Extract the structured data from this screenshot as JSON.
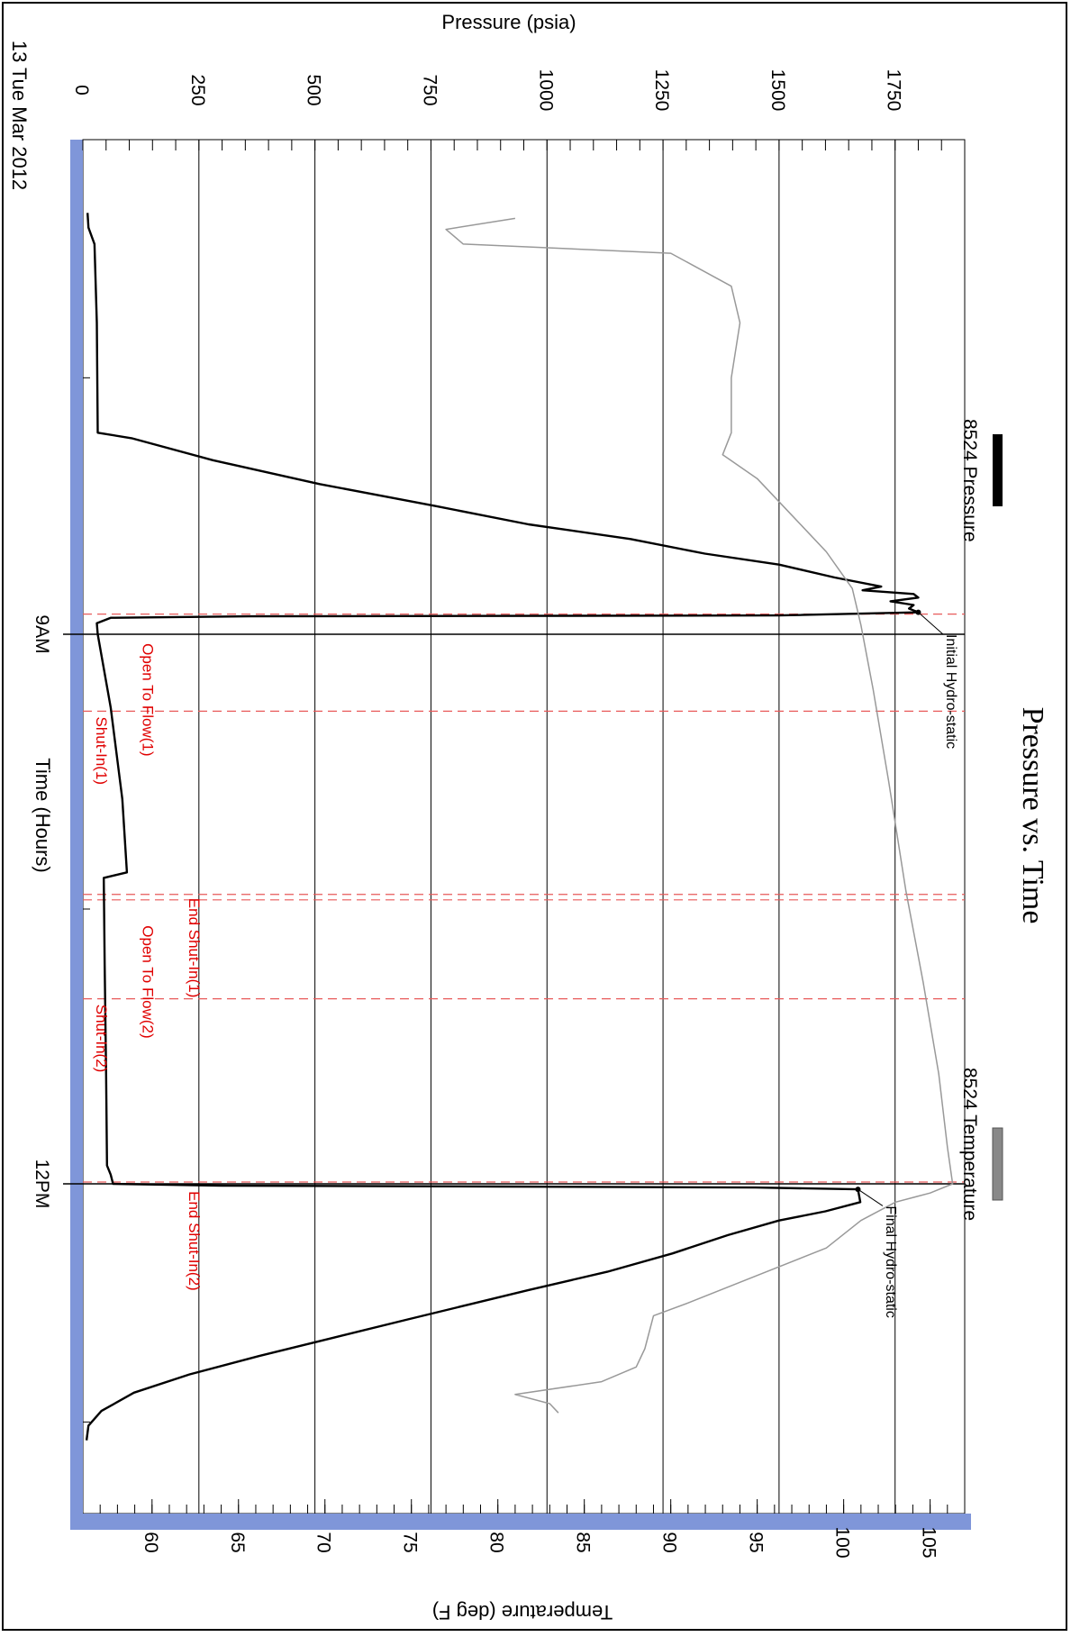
{
  "chart_data": {
    "type": "line",
    "title": "Pressure vs. Time",
    "date_label": "13 Tue Mar 2012",
    "xlabel": "Time (Hours)",
    "ylabel": "Pressure (psia)",
    "ylabel_right": "Temperature (deg F)",
    "x_tick_labels": [
      {
        "hour": 9,
        "label": "9AM"
      },
      {
        "hour": 12,
        "label": "12PM"
      }
    ],
    "xlim_hours": [
      6.3,
      13.8
    ],
    "ylim": [
      0,
      1900
    ],
    "y_ticks": [
      0,
      250,
      500,
      750,
      1000,
      1250,
      1500,
      1750
    ],
    "y2lim": [
      56,
      107
    ],
    "y2_ticks": [
      60,
      65,
      70,
      75,
      80,
      85,
      90,
      95,
      100,
      105
    ],
    "grid": true,
    "legend_placement": "top",
    "series": [
      {
        "name": "8524 Pressure",
        "axis": "left",
        "color": "#000000",
        "points": [
          [
            6.7,
            10
          ],
          [
            6.78,
            12
          ],
          [
            6.87,
            25
          ],
          [
            7.3,
            30
          ],
          [
            7.9,
            32
          ],
          [
            7.93,
            105
          ],
          [
            8.05,
            280
          ],
          [
            8.18,
            510
          ],
          [
            8.3,
            760
          ],
          [
            8.4,
            960
          ],
          [
            8.48,
            1180
          ],
          [
            8.56,
            1340
          ],
          [
            8.62,
            1500
          ],
          [
            8.69,
            1620
          ],
          [
            8.74,
            1720
          ],
          [
            8.76,
            1680
          ],
          [
            8.78,
            1790
          ],
          [
            8.8,
            1800
          ],
          [
            8.82,
            1740
          ],
          [
            8.84,
            1790
          ],
          [
            8.86,
            1780
          ],
          [
            8.88,
            1800
          ],
          [
            8.897,
            1500
          ],
          [
            8.902,
            360
          ],
          [
            8.91,
            60
          ],
          [
            8.94,
            30
          ],
          [
            9.0,
            32
          ],
          [
            9.4,
            60
          ],
          [
            9.9,
            85
          ],
          [
            10.3,
            95
          ],
          [
            10.33,
            45
          ],
          [
            10.8,
            47
          ],
          [
            11.4,
            50
          ],
          [
            11.9,
            52
          ],
          [
            11.95,
            60
          ],
          [
            12.0,
            65
          ],
          [
            12.01,
            300
          ],
          [
            12.015,
            900
          ],
          [
            12.02,
            1450
          ],
          [
            12.03,
            1670
          ],
          [
            12.1,
            1675
          ],
          [
            12.15,
            1600
          ],
          [
            12.2,
            1500
          ],
          [
            12.28,
            1390
          ],
          [
            12.38,
            1270
          ],
          [
            12.48,
            1130
          ],
          [
            12.58,
            960
          ],
          [
            12.66,
            830
          ],
          [
            12.74,
            700
          ],
          [
            12.84,
            540
          ],
          [
            12.94,
            380
          ],
          [
            13.04,
            230
          ],
          [
            13.14,
            110
          ],
          [
            13.24,
            40
          ],
          [
            13.32,
            12
          ],
          [
            13.4,
            8
          ]
        ]
      },
      {
        "name": "8524 Temperature",
        "axis": "right",
        "color": "#999999",
        "points": [
          [
            6.73,
            81
          ],
          [
            6.79,
            77
          ],
          [
            6.87,
            78
          ],
          [
            6.92,
            90
          ],
          [
            7.1,
            93.5
          ],
          [
            7.3,
            94.0
          ],
          [
            7.6,
            93.5
          ],
          [
            7.9,
            93.5
          ],
          [
            8.02,
            93.0
          ],
          [
            8.15,
            95.0
          ],
          [
            8.35,
            97.0
          ],
          [
            8.55,
            99.0
          ],
          [
            8.75,
            100.5
          ],
          [
            8.95,
            101.0
          ],
          [
            9.3,
            101.7
          ],
          [
            9.8,
            102.6
          ],
          [
            10.4,
            103.6
          ],
          [
            10.9,
            104.6
          ],
          [
            11.4,
            105.5
          ],
          [
            11.8,
            106.0
          ],
          [
            12.0,
            106.3
          ],
          [
            12.05,
            105.0
          ],
          [
            12.1,
            103.0
          ],
          [
            12.2,
            101.0
          ],
          [
            12.35,
            99.0
          ],
          [
            12.5,
            95.0
          ],
          [
            12.65,
            91.0
          ],
          [
            12.72,
            89.0
          ],
          [
            12.9,
            88.5
          ],
          [
            13.0,
            88.0
          ],
          [
            13.08,
            86.0
          ],
          [
            13.15,
            81.0
          ],
          [
            13.2,
            83.0
          ],
          [
            13.25,
            83.5
          ]
        ]
      }
    ],
    "event_markers": [
      {
        "hour": 8.89,
        "label": "",
        "style": "dashed"
      },
      {
        "hour": 9.42,
        "label": "",
        "style": "dashed"
      },
      {
        "hour": 10.42,
        "label": "",
        "style": "dashed"
      },
      {
        "hour": 10.45,
        "label": "",
        "style": "dashed"
      },
      {
        "hour": 10.99,
        "label": "",
        "style": "dashed"
      },
      {
        "hour": 11.99,
        "label": "",
        "style": "dashed"
      }
    ],
    "event_labels": [
      {
        "hour": 9.05,
        "pressure": 90,
        "label": "Open To Flow(1)"
      },
      {
        "hour": 9.45,
        "pressure": -10,
        "label": "Shut-In(1)"
      },
      {
        "hour": 10.44,
        "pressure": 190,
        "label": "End Shut-In(1)"
      },
      {
        "hour": 10.59,
        "pressure": 90,
        "label": "Open To Flow(2)"
      },
      {
        "hour": 11.02,
        "pressure": -10,
        "label": "Shut-In(2)"
      },
      {
        "hour": 12.04,
        "pressure": 190,
        "label": "End Shut-In(2)"
      }
    ],
    "annotations": [
      {
        "label": "Initial Hydro-static",
        "hour": 8.88,
        "pressure": 1800,
        "text_hour": 9.0,
        "text_pressure": 1830
      },
      {
        "label": "Final Hydro-static",
        "hour": 12.03,
        "pressure": 1670,
        "text_hour": 12.12,
        "text_pressure": 1700
      }
    ]
  }
}
